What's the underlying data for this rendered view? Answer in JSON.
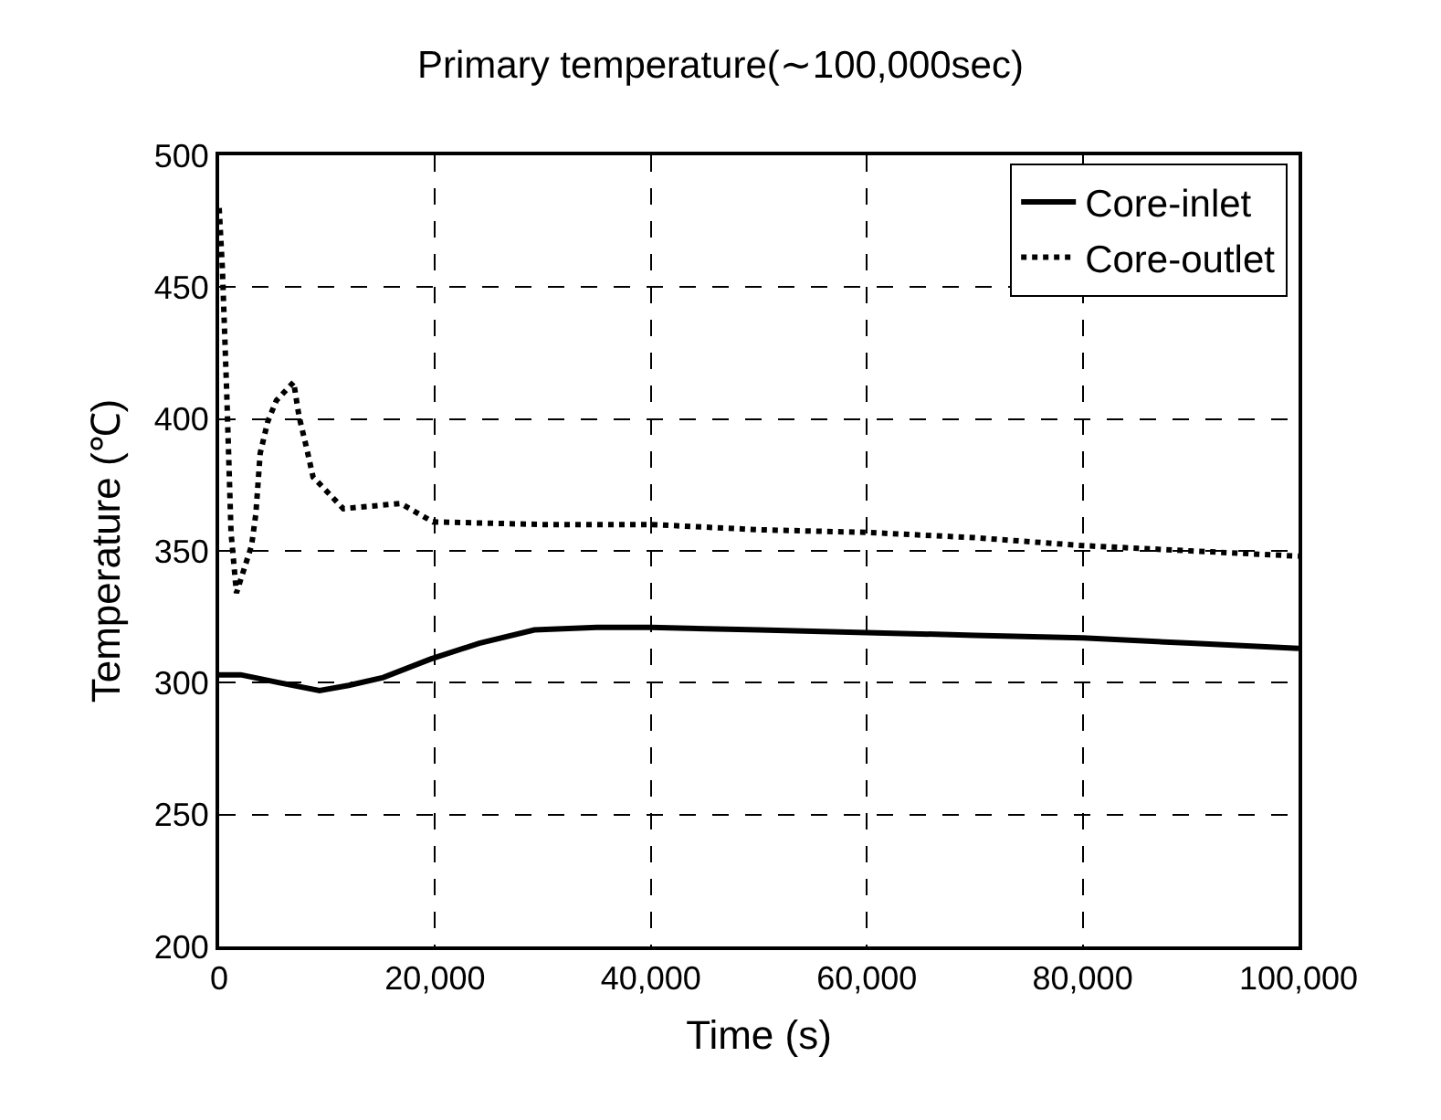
{
  "chart_data": {
    "type": "line",
    "title": "Primary temperature(∼100,000sec)",
    "xlabel": "Time (s)",
    "ylabel": "Temperature (℃)",
    "xlim": [
      0,
      100000
    ],
    "xticks": [
      {
        "value": 0,
        "label": "0"
      },
      {
        "value": 20000,
        "label": "20,000"
      },
      {
        "value": 40000,
        "label": "40,000"
      },
      {
        "value": 60000,
        "label": "60,000"
      },
      {
        "value": 80000,
        "label": "80,000"
      },
      {
        "value": 100000,
        "label": "100,000"
      }
    ],
    "ylim": [
      200,
      500
    ],
    "yticks": [
      200,
      250,
      300,
      350,
      400,
      450,
      500
    ],
    "grid": true,
    "legend": "top right",
    "marker": "none",
    "series": [
      {
        "name": "Core-inlet",
        "color": "#000000",
        "line_style": "solid",
        "x": [
          0,
          2000,
          5600,
          9300,
          12000,
          15200,
          19600,
          24100,
          29200,
          35000,
          40000,
          50000,
          60000,
          70000,
          80000,
          90000,
          100000
        ],
        "values": [
          303,
          303,
          300,
          297,
          299,
          302,
          309,
          315,
          320,
          321,
          321,
          320,
          319,
          318,
          317,
          315,
          313
        ]
      },
      {
        "name": "Core-outlet",
        "color": "#000000",
        "line_style": "dotted",
        "x": [
          0,
          300,
          700,
          1100,
          1600,
          3000,
          3400,
          3800,
          4500,
          5300,
          6900,
          7400,
          8100,
          8700,
          11500,
          14200,
          16800,
          19800,
          30000,
          40000,
          50000,
          60000,
          70000,
          80000,
          90000,
          100000
        ],
        "values": [
          480,
          457,
          410,
          357,
          334,
          352,
          364,
          387,
          399,
          407,
          414,
          401,
          389,
          378,
          366,
          367,
          368,
          361,
          360,
          360,
          358,
          357,
          355,
          352,
          350,
          348
        ]
      }
    ]
  }
}
